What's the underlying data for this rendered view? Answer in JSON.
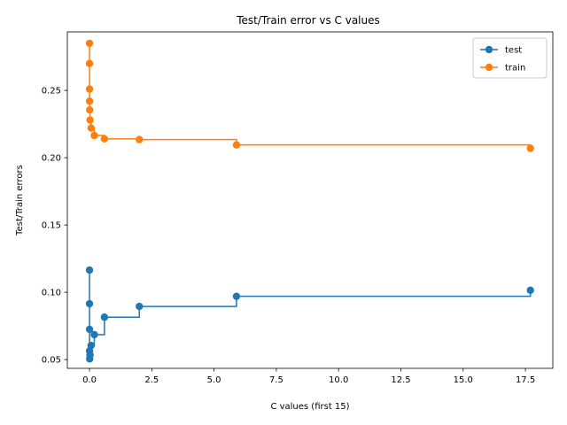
{
  "chart_data": {
    "type": "line",
    "title": "Test/Train error vs C values",
    "xlabel": "C values (first 15)",
    "ylabel": "Test/Train errors",
    "xlim": [
      -0.89,
      18.6
    ],
    "ylim": [
      0.0435,
      0.2935
    ],
    "xticks": [
      0,
      2.5,
      5,
      7.5,
      10,
      12.5,
      15,
      17.5
    ],
    "xtick_labels": [
      "0.0",
      "2.5",
      "5.0",
      "7.5",
      "10.0",
      "12.5",
      "15.0",
      "17.5"
    ],
    "yticks": [
      0.05,
      0.1,
      0.15,
      0.2,
      0.25
    ],
    "ytick_labels": [
      "0.05",
      "0.10",
      "0.15",
      "0.20",
      "0.25"
    ],
    "drawstyle": "steps-post",
    "grid": false,
    "legend_position": "top-right",
    "x": [
      0.0001,
      0.0003,
      0.0008,
      0.0024,
      0.0072,
      0.0215,
      0.0645,
      0.1935,
      0.6,
      2.0,
      5.9,
      17.7
    ],
    "series": [
      {
        "name": "test",
        "color": "#1f77b4",
        "values": [
          0.1165,
          0.0915,
          0.0725,
          0.0565,
          0.0505,
          0.0535,
          0.0605,
          0.0685,
          0.0815,
          0.0895,
          0.097,
          0.1015
        ]
      },
      {
        "name": "train",
        "color": "#ff7f0e",
        "values": [
          0.285,
          0.27,
          0.251,
          0.242,
          0.2355,
          0.228,
          0.222,
          0.2165,
          0.214,
          0.2135,
          0.2095,
          0.207
        ]
      }
    ]
  }
}
